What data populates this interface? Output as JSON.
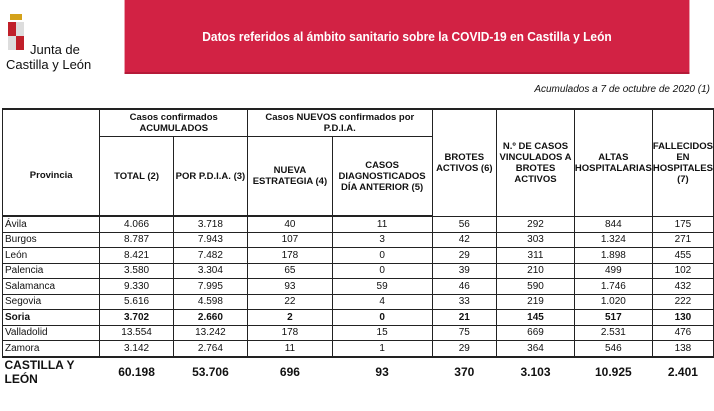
{
  "logo": {
    "line1": "Junta de",
    "line2": "Castilla y León"
  },
  "banner": {
    "title": "Datos referidos al ámbito sanitario sobre la COVID-19 en Castilla y León",
    "color": "#d22244"
  },
  "note": "Acumulados a 7 de octubre de 2020 (1)",
  "groups": {
    "acumulados": "Casos confirmados ACUMULADOS",
    "nuevos": "Casos NUEVOS confirmados por P.D.I.A."
  },
  "columns": [
    "Provincia",
    "TOTAL (2)",
    "POR P.D.I.A. (3)",
    "NUEVA ESTRATEGIA (4)",
    "CASOS DIAGNOSTICADOS DÍA ANTERIOR (5)",
    "BROTES ACTIVOS (6)",
    "N.º DE CASOS VINCULADOS A BROTES ACTIVOS",
    "ALTAS HOSPITALARIAS",
    "FALLECIDOS EN HOSPITALES (7)"
  ],
  "rows": [
    [
      "Ávila",
      "4.066",
      "3.718",
      "40",
      "11",
      "56",
      "292",
      "844",
      "175"
    ],
    [
      "Burgos",
      "8.787",
      "7.943",
      "107",
      "3",
      "42",
      "303",
      "1.324",
      "271"
    ],
    [
      "León",
      "8.421",
      "7.482",
      "178",
      "0",
      "29",
      "311",
      "1.898",
      "455"
    ],
    [
      "Palencia",
      "3.580",
      "3.304",
      "65",
      "0",
      "39",
      "210",
      "499",
      "102"
    ],
    [
      "Salamanca",
      "9.330",
      "7.995",
      "93",
      "59",
      "46",
      "590",
      "1.746",
      "432"
    ],
    [
      "Segovia",
      "5.616",
      "4.598",
      "22",
      "4",
      "33",
      "219",
      "1.020",
      "222"
    ],
    [
      "Soria",
      "3.702",
      "2.660",
      "2",
      "0",
      "21",
      "145",
      "517",
      "130"
    ],
    [
      "Valladolid",
      "13.554",
      "13.242",
      "178",
      "15",
      "75",
      "669",
      "2.531",
      "476"
    ],
    [
      "Zamora",
      "3.142",
      "2.764",
      "11",
      "1",
      "29",
      "364",
      "546",
      "138"
    ]
  ],
  "total": [
    "CASTILLA Y LEÓN",
    "60.198",
    "53.706",
    "696",
    "93",
    "370",
    "3.103",
    "10.925",
    "2.401"
  ]
}
